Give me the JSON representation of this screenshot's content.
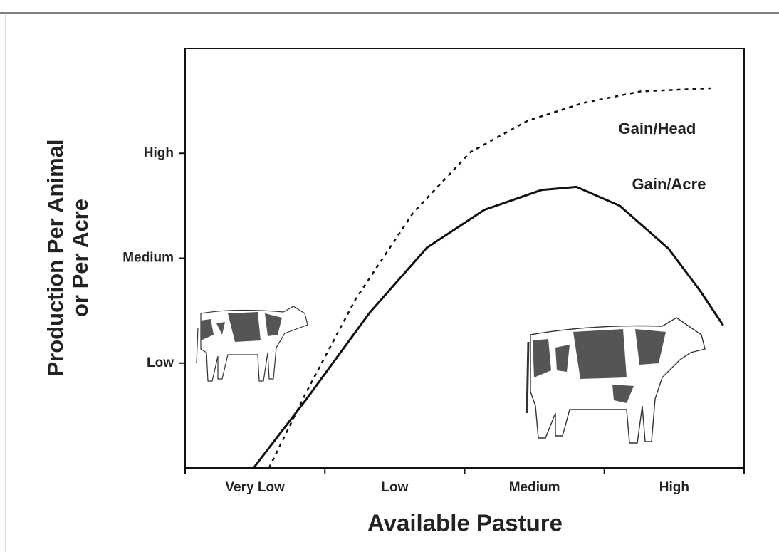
{
  "chart_data": {
    "type": "line",
    "x_label": "Available Pasture",
    "y_label": [
      "Production Per Animal",
      "or Per Acre"
    ],
    "categories": [
      "Very Low",
      "Low",
      "Medium",
      "High"
    ],
    "xlim": [
      0,
      4
    ],
    "ylim": [
      0,
      4
    ],
    "yticks": [
      {
        "value": 1,
        "label": "Low"
      },
      {
        "value": 2,
        "label": "Medium"
      },
      {
        "value": 3,
        "label": "High"
      }
    ],
    "series": [
      {
        "name": "Gain/Head",
        "color": "#111111",
        "dash": "dotted",
        "x": [
          0.6,
          0.87,
          1.22,
          1.63,
          2.04,
          2.45,
          2.85,
          3.26,
          3.76
        ],
        "values": [
          0,
          0.73,
          1.61,
          2.43,
          3.01,
          3.31,
          3.48,
          3.59,
          3.62
        ]
      },
      {
        "name": "Gain/Acre",
        "color": "#111111",
        "dash": "solid",
        "x": [
          0.49,
          0.87,
          1.32,
          1.73,
          2.14,
          2.55,
          2.8,
          3.11,
          3.46,
          3.69,
          3.85
        ],
        "values": [
          0,
          0.66,
          1.48,
          2.1,
          2.46,
          2.65,
          2.68,
          2.5,
          2.09,
          1.68,
          1.36
        ]
      }
    ]
  }
}
